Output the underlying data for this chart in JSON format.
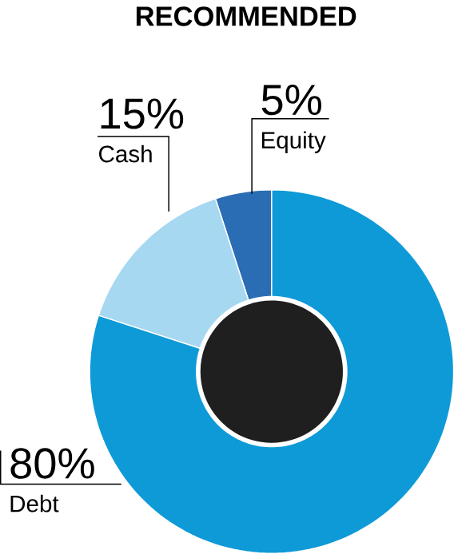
{
  "chart_data": {
    "type": "donut",
    "title": "RECOMMENDED",
    "categories": [
      "Equity",
      "Cash",
      "Debt"
    ],
    "values": [
      5,
      15,
      80
    ],
    "colors": [
      "#2a6db5",
      "#a6d8f2",
      "#0e9ad7"
    ],
    "value_labels": [
      "5%",
      "15%",
      "80%"
    ]
  }
}
